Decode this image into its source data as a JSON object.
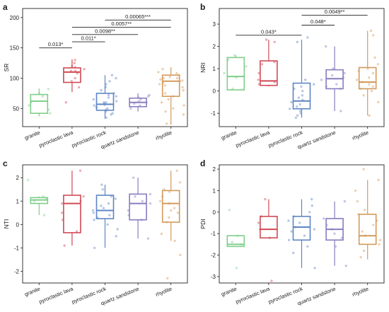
{
  "categories": [
    "granite",
    "pyroclastic lava",
    "pyroclastic rock",
    "quartz sandstone",
    "rhyolite"
  ],
  "colors": [
    "#7fcf8a",
    "#cf4a55",
    "#5e86c4",
    "#8a7cc0",
    "#d39a5b"
  ],
  "chart_data": [
    {
      "panel": "a",
      "type": "box",
      "ylabel": "SR",
      "ylim": [
        20,
        215
      ],
      "yticks": [
        50,
        100,
        150,
        200
      ],
      "boxes": [
        {
          "category": "granite",
          "q1": 42,
          "median": 62,
          "q3": 73,
          "whisker_low": 37,
          "whisker_high": 83
        },
        {
          "category": "pyroclastic lava",
          "q1": 93,
          "median": 110,
          "q3": 117,
          "whisker_low": 77,
          "whisker_high": 131
        },
        {
          "category": "pyroclastic rock",
          "q1": 47,
          "median": 57,
          "q3": 75,
          "whisker_low": 33,
          "whisker_high": 105
        },
        {
          "category": "quartz sandstone",
          "q1": 53,
          "median": 60,
          "q3": 67,
          "whisker_low": 45,
          "whisker_high": 75
        },
        {
          "category": "rhyolite",
          "q1": 70,
          "median": 95,
          "q3": 105,
          "whisker_low": 23,
          "whisker_high": 118
        }
      ],
      "points": [
        [
          60,
          75,
          82,
          48,
          42,
          55,
          70
        ],
        [
          115,
          120,
          95,
          100,
          108,
          112,
          60,
          130,
          118,
          125,
          85,
          112
        ],
        [
          40,
          45,
          60,
          75,
          80,
          95,
          100,
          50,
          55,
          35,
          65,
          70,
          85,
          48,
          52,
          58,
          42,
          62,
          68,
          72,
          90,
          105,
          56,
          60
        ],
        [
          55,
          60,
          65,
          70,
          58,
          62,
          50,
          68,
          72
        ],
        [
          25,
          40,
          60,
          80,
          95,
          100,
          110,
          105,
          98,
          90,
          85,
          70,
          65,
          50,
          115,
          100,
          92,
          88,
          75,
          55,
          45,
          102,
          108,
          96
        ]
      ],
      "annotations": [
        {
          "label": "0.013*",
          "from": "granite",
          "to": "pyroclastic lava",
          "y": 150
        },
        {
          "label": "0.011*",
          "from": "pyroclastic lava",
          "to": "pyroclastic rock",
          "y": 160
        },
        {
          "label": "0.0098**",
          "from": "pyroclastic lava",
          "to": "quartz sandstone",
          "y": 172
        },
        {
          "label": "0.0057**",
          "from": "pyroclastic lava",
          "to": "rhyolite",
          "y": 184
        },
        {
          "label": "0.00065***",
          "from": "pyroclastic rock",
          "to": "rhyolite",
          "y": 196
        }
      ]
    },
    {
      "panel": "b",
      "type": "box",
      "ylabel": "NRI",
      "ylim": [
        -1.6,
        3.7
      ],
      "yticks": [
        -1,
        0,
        1,
        2,
        3
      ],
      "boxes": [
        {
          "category": "granite",
          "q1": 0.05,
          "median": 0.65,
          "q3": 1.5,
          "whisker_low": 0.05,
          "whisker_high": 1.6
        },
        {
          "category": "pyroclastic lava",
          "q1": 0.25,
          "median": 0.45,
          "q3": 1.35,
          "whisker_low": 0.2,
          "whisker_high": 2.3
        },
        {
          "category": "pyroclastic rock",
          "q1": -0.8,
          "median": -0.45,
          "q3": 0.35,
          "whisker_low": -1.2,
          "whisker_high": 2.3
        },
        {
          "category": "quartz sandstone",
          "q1": 0.1,
          "median": 0.55,
          "q3": 0.95,
          "whisker_low": -0.9,
          "whisker_high": 2.0
        },
        {
          "category": "rhyolite",
          "q1": 0.1,
          "median": 0.4,
          "q3": 1.05,
          "whisker_low": -1.1,
          "whisker_high": 2.7
        }
      ],
      "points": [
        [
          0.1,
          0.6,
          1.4,
          1.6,
          0.8,
          1.1
        ],
        [
          0.3,
          0.5,
          1.2,
          2.2,
          0.4,
          1.3,
          0.8,
          2.3
        ],
        [
          -1.2,
          -0.8,
          -0.5,
          -0.3,
          0.1,
          0.3,
          2.4,
          -1.0,
          -0.6,
          -0.2,
          0.2,
          -0.9,
          -0.7,
          0.0,
          -0.4,
          0.5,
          -1.1,
          2.2
        ],
        [
          -0.9,
          0.2,
          0.5,
          0.7,
          1.0,
          2.0,
          0.3,
          0.8,
          0.1,
          0.6
        ],
        [
          -1.1,
          -0.5,
          0.1,
          0.3,
          0.5,
          0.8,
          1.0,
          1.5,
          2.7,
          0.4,
          0.2,
          -0.2,
          0.6,
          1.2,
          2.5,
          0.0,
          0.9
        ]
      ],
      "annotations": [
        {
          "label": "0.043*",
          "from": "granite",
          "to": "pyroclastic rock",
          "y": 2.5
        },
        {
          "label": "0.048*",
          "from": "pyroclastic rock",
          "to": "quartz sandstone",
          "y": 2.95
        },
        {
          "label": "0.0049**",
          "from": "pyroclastic rock",
          "to": "rhyolite",
          "y": 3.4
        }
      ]
    },
    {
      "panel": "c",
      "type": "box",
      "ylabel": "NTI",
      "ylim": [
        -2.5,
        2.55
      ],
      "yticks": [
        -2,
        -1,
        0,
        1,
        2
      ],
      "boxes": [
        {
          "category": "granite",
          "q1": 0.9,
          "median": 1.05,
          "q3": 1.15,
          "whisker_low": 0.4,
          "whisker_high": 1.2
        },
        {
          "category": "pyroclastic lava",
          "q1": -0.35,
          "median": 0.9,
          "q3": 1.25,
          "whisker_low": -0.9,
          "whisker_high": 2.3
        },
        {
          "category": "pyroclastic rock",
          "q1": 0.25,
          "median": 0.6,
          "q3": 1.25,
          "whisker_low": -1.0,
          "whisker_high": 1.7
        },
        {
          "category": "quartz sandstone",
          "q1": 0.2,
          "median": 0.9,
          "q3": 1.3,
          "whisker_low": -0.6,
          "whisker_high": 2.0
        },
        {
          "category": "rhyolite",
          "q1": 0.1,
          "median": 0.9,
          "q3": 1.45,
          "whisker_low": -0.7,
          "whisker_high": 2.3
        }
      ],
      "points": [
        [
          0.4,
          1.0,
          1.1,
          1.9,
          1.2
        ],
        [
          -0.9,
          -0.3,
          0.5,
          0.9,
          1.2,
          2.3,
          1.0,
          0.2
        ],
        [
          -1.0,
          -0.5,
          0.0,
          0.3,
          0.6,
          0.9,
          1.2,
          1.5,
          0.4,
          0.7,
          -0.2,
          1.1,
          0.5,
          0.8,
          1.7,
          0.2
        ],
        [
          -0.6,
          0.2,
          0.6,
          0.9,
          1.2,
          2.0,
          0.4,
          1.0,
          1.3
        ],
        [
          -2.3,
          -1.3,
          -0.7,
          0.1,
          0.5,
          0.9,
          1.2,
          1.5,
          2.3,
          0.3,
          0.7,
          1.0,
          -0.4,
          1.8,
          0.6,
          1.4
        ]
      ]
    },
    {
      "panel": "d",
      "type": "box",
      "ylabel": "PDI",
      "ylim": [
        -3.3,
        2.2
      ],
      "yticks": [
        -3,
        -2,
        -1,
        0,
        1,
        2
      ],
      "boxes": [
        {
          "category": "granite",
          "q1": -1.6,
          "median": -1.5,
          "q3": -1.1,
          "whisker_low": -1.6,
          "whisker_high": -1.1
        },
        {
          "category": "pyroclastic lava",
          "q1": -1.2,
          "median": -0.8,
          "q3": -0.2,
          "whisker_low": -1.2,
          "whisker_high": 0.6
        },
        {
          "category": "pyroclastic rock",
          "q1": -1.3,
          "median": -0.7,
          "q3": -0.2,
          "whisker_low": -2.6,
          "whisker_high": 0.6
        },
        {
          "category": "quartz sandstone",
          "q1": -1.3,
          "median": -0.8,
          "q3": -0.3,
          "whisker_low": -2.5,
          "whisker_high": 0.5
        },
        {
          "category": "rhyolite",
          "q1": -1.5,
          "median": -1.1,
          "q3": -0.1,
          "whisker_low": -2.2,
          "whisker_high": 1.5
        }
      ],
      "points": [
        [
          -2.6,
          -1.5,
          -1.1,
          0.1,
          -1.4
        ],
        [
          -3.2,
          -1.2,
          -0.8,
          -0.2,
          0.6,
          -0.5
        ],
        [
          -2.6,
          -1.9,
          -1.3,
          -0.9,
          -0.5,
          -0.2,
          0.3,
          0.6,
          -1.1,
          -0.7,
          -0.4,
          0.0,
          -1.6,
          -0.8
        ],
        [
          -2.5,
          -1.6,
          -1.2,
          -0.8,
          -0.3,
          0.5,
          -1.0,
          -0.6
        ],
        [
          -2.1,
          -1.5,
          -1.1,
          -0.6,
          -0.1,
          0.5,
          1.5,
          2.0,
          -0.9,
          -1.3,
          0.1,
          -0.4,
          1.0,
          -1.8
        ]
      ]
    }
  ]
}
